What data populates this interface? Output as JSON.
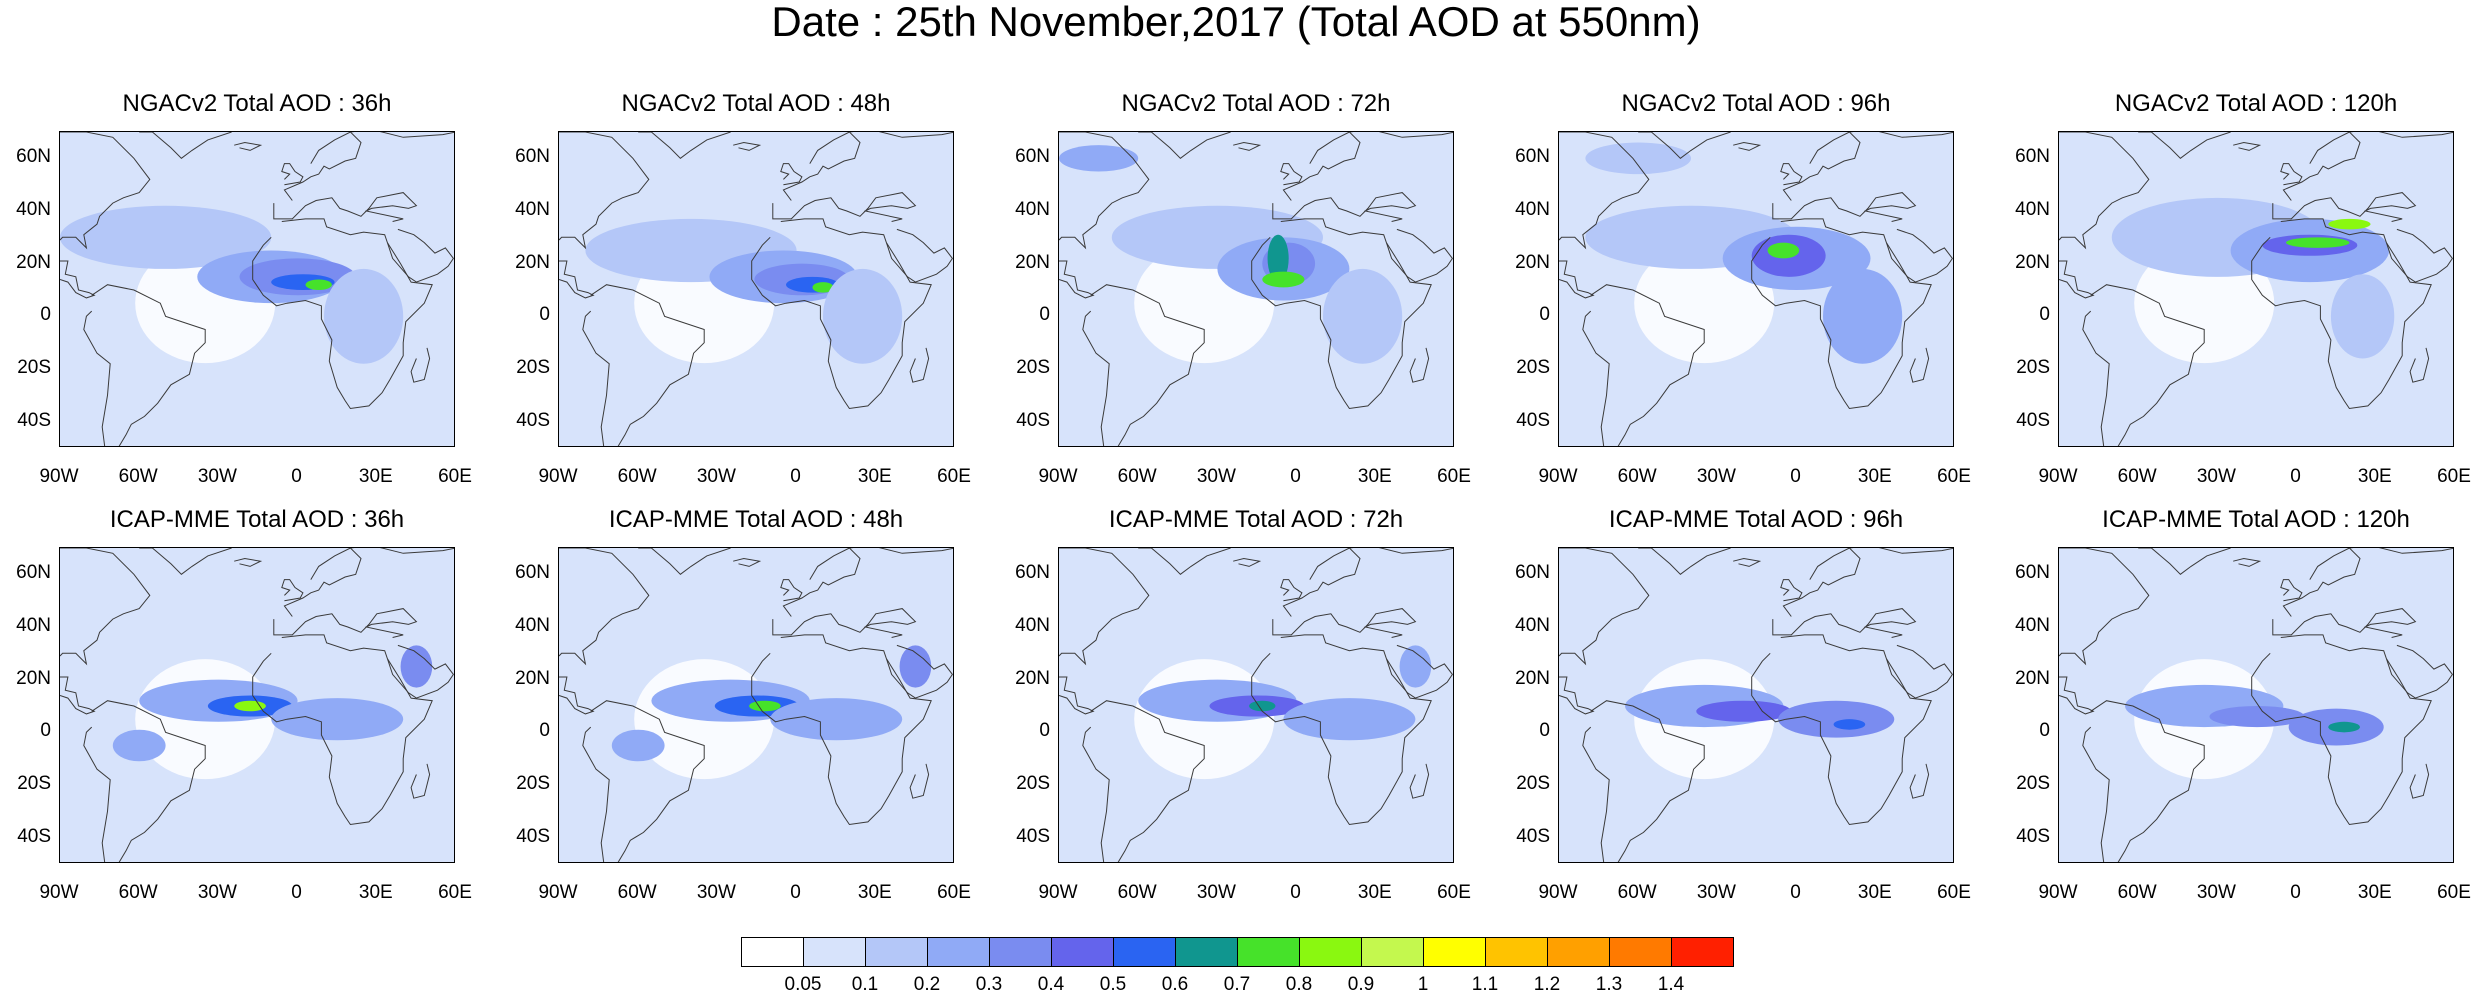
{
  "title": "Date : 25th November,2017 (Total AOD at 550nm)",
  "map": {
    "region": "Atlantic, Africa, Europe and the Americas",
    "lon_range": [
      -90,
      60
    ],
    "lat_range": [
      -50,
      70
    ],
    "lon_ticks": [
      "90W",
      "60W",
      "30W",
      "0",
      "30E",
      "60E"
    ],
    "lon_tick_values": [
      -90,
      -60,
      -30,
      0,
      30,
      60
    ],
    "lat_ticks": [
      "60N",
      "40N",
      "20N",
      "0",
      "20S",
      "40S"
    ],
    "lat_tick_values": [
      60,
      40,
      20,
      0,
      -20,
      -40
    ],
    "ocean_color": "#d7e3fb",
    "land_outline_color": "#3a3a3a"
  },
  "rows": [
    {
      "model": "NGACv2",
      "panels": [
        {
          "title": "NGACv2 Total AOD : 36h",
          "peak_level": 8
        },
        {
          "title": "NGACv2 Total AOD : 48h",
          "peak_level": 8
        },
        {
          "title": "NGACv2 Total AOD : 72h",
          "peak_level": 9
        },
        {
          "title": "NGACv2 Total AOD : 96h",
          "peak_level": 9
        },
        {
          "title": "NGACv2 Total AOD : 120h",
          "peak_level": 9
        }
      ]
    },
    {
      "model": "ICAP-MME",
      "panels": [
        {
          "title": "ICAP-MME Total AOD : 36h",
          "peak_level": 9
        },
        {
          "title": "ICAP-MME Total AOD : 48h",
          "peak_level": 8
        },
        {
          "title": "ICAP-MME Total AOD : 72h",
          "peak_level": 7
        },
        {
          "title": "ICAP-MME Total AOD : 96h",
          "peak_level": 6
        },
        {
          "title": "ICAP-MME Total AOD : 120h",
          "peak_level": 7
        }
      ]
    }
  ],
  "colorbar": {
    "labels": [
      "0.05",
      "0.1",
      "0.2",
      "0.3",
      "0.4",
      "0.5",
      "0.6",
      "0.7",
      "0.8",
      "0.9",
      "1",
      "1.1",
      "1.2",
      "1.3",
      "1.4"
    ],
    "colors": [
      "#ffffff",
      "#d7e3fb",
      "#b4c7f8",
      "#90aaf6",
      "#7a8cf0",
      "#6464ec",
      "#2a64f2",
      "#10968f",
      "#46e22a",
      "#8af810",
      "#c4f84e",
      "#ffff00",
      "#ffc300",
      "#ffa000",
      "#ff7a00",
      "#ff2000"
    ]
  }
}
